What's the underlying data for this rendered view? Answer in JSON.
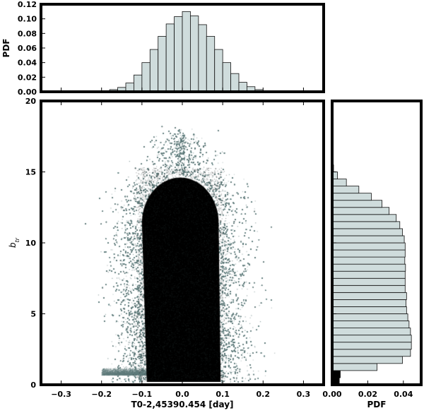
{
  "chart_data": [
    {
      "type": "bar",
      "panel": "top-histogram",
      "xlabel": "",
      "ylabel": "PDF",
      "xlim": [
        -0.35,
        0.35
      ],
      "ylim": [
        0,
        0.12
      ],
      "yticks": [
        "0.00",
        "0.02",
        "0.04",
        "0.06",
        "0.08",
        "0.10",
        "0.12"
      ],
      "bin_width": 0.02,
      "bin_starts": [
        -0.2,
        -0.18,
        -0.16,
        -0.14,
        -0.12,
        -0.1,
        -0.08,
        -0.06,
        -0.04,
        -0.02,
        0.0,
        0.02,
        0.04,
        0.06,
        0.08,
        0.1,
        0.12,
        0.14,
        0.16,
        0.18,
        0.2
      ],
      "values": [
        0.001,
        0.003,
        0.006,
        0.012,
        0.023,
        0.04,
        0.058,
        0.076,
        0.093,
        0.103,
        0.11,
        0.104,
        0.092,
        0.076,
        0.058,
        0.04,
        0.025,
        0.013,
        0.007,
        0.003,
        0.001
      ]
    },
    {
      "type": "scatter",
      "panel": "main-scatter",
      "xlabel": "T0-2,45390.454 [day]",
      "ylabel": "b",
      "ylabel_sub": "tr",
      "xlim": [
        -0.35,
        0.35
      ],
      "ylim": [
        0,
        20
      ],
      "xticks": [
        "−0.3",
        "−0.2",
        "−0.1",
        "0.0",
        "0.1",
        "0.2",
        "0.3"
      ],
      "yticks": [
        "0",
        "5",
        "10",
        "15",
        "20"
      ],
      "point_color": "#5f7b7b",
      "dense_core_color": "#000000",
      "density_model": {
        "core_x_range": [
          -0.1,
          0.09
        ],
        "core_top_b": 14.6,
        "sigma_x": 0.028,
        "sigma_top": 0.55,
        "low_band_b": [
          0.7,
          1.1
        ],
        "low_band_x_range": [
          -0.2,
          0.07
        ]
      }
    },
    {
      "type": "bar",
      "orientation": "horizontal",
      "panel": "right-histogram",
      "xlabel": "PDF",
      "ylabel": "",
      "xlim": [
        0,
        0.05
      ],
      "ylim": [
        0,
        20
      ],
      "xticks": [
        "0.00",
        "0.02",
        "0.04"
      ],
      "bin_width": 0.5,
      "bin_starts": [
        0.0,
        0.5,
        1.0,
        1.5,
        2.0,
        2.5,
        3.0,
        3.5,
        4.0,
        4.5,
        5.0,
        5.5,
        6.0,
        6.5,
        7.0,
        7.5,
        8.0,
        8.5,
        9.0,
        9.5,
        10.0,
        10.5,
        11.0,
        11.5,
        12.0,
        12.5,
        13.0,
        13.5,
        14.0,
        14.5,
        15.0
      ],
      "values": [
        0.004,
        0.0045,
        0.0252,
        0.0395,
        0.044,
        0.0445,
        0.0445,
        0.044,
        0.0432,
        0.0425,
        0.0418,
        0.0415,
        0.0418,
        0.041,
        0.041,
        0.041,
        0.0412,
        0.0408,
        0.041,
        0.041,
        0.0405,
        0.0395,
        0.038,
        0.036,
        0.032,
        0.028,
        0.022,
        0.015,
        0.008,
        0.003,
        0.0008
      ],
      "dark_values": [
        0.004,
        0.0045,
        0.0003,
        0,
        0,
        0,
        0,
        0,
        0,
        0,
        0,
        0,
        0,
        0,
        0,
        0,
        0,
        0,
        0,
        0,
        0,
        0,
        0,
        0,
        0,
        0,
        0,
        0,
        0,
        0,
        0
      ]
    }
  ],
  "colors": {
    "bar_fill": "#cfdcdc",
    "bar_edge": "#111111",
    "frame": "#000000",
    "scatter_point": "#5f7b7b"
  }
}
